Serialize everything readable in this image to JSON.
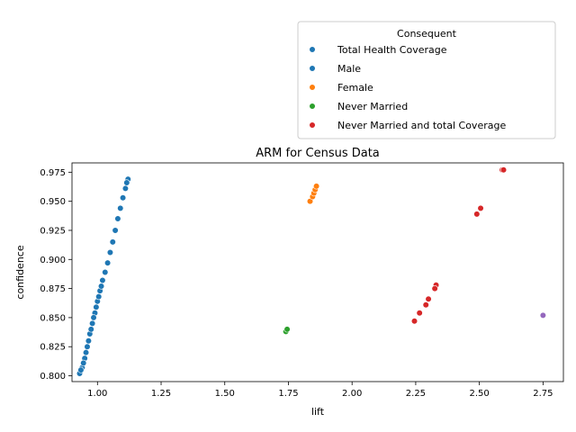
{
  "chart_data": {
    "type": "scatter",
    "title": "ARM for Census Data",
    "xlabel": "lift",
    "ylabel": "confidence",
    "xlim": [
      0.9,
      2.83
    ],
    "ylim": [
      0.795,
      0.983
    ],
    "x_ticks": [
      1.0,
      1.25,
      1.5,
      1.75,
      2.0,
      2.25,
      2.5,
      2.75
    ],
    "x_tick_labels": [
      "1.00",
      "1.25",
      "1.50",
      "1.75",
      "2.00",
      "2.25",
      "2.50",
      "2.75"
    ],
    "y_ticks": [
      0.8,
      0.825,
      0.85,
      0.875,
      0.9,
      0.925,
      0.95,
      0.975
    ],
    "y_tick_labels": [
      "0.800",
      "0.825",
      "0.850",
      "0.875",
      "0.900",
      "0.925",
      "0.950",
      "0.975"
    ],
    "grid": false,
    "legend_placement": "upper-right-outside",
    "legend_title": "Consequent",
    "series": [
      {
        "name": "Total Health Coverage",
        "color": "#1f77b4",
        "points": [
          {
            "x": 0.93,
            "y": 0.802
          },
          {
            "x": 0.94,
            "y": 0.807
          },
          {
            "x": 0.95,
            "y": 0.815
          },
          {
            "x": 0.96,
            "y": 0.825
          },
          {
            "x": 0.97,
            "y": 0.836
          },
          {
            "x": 0.98,
            "y": 0.845
          },
          {
            "x": 0.99,
            "y": 0.854
          },
          {
            "x": 1.0,
            "y": 0.864
          },
          {
            "x": 1.01,
            "y": 0.873
          },
          {
            "x": 1.02,
            "y": 0.882
          },
          {
            "x": 1.04,
            "y": 0.897
          },
          {
            "x": 1.06,
            "y": 0.915
          },
          {
            "x": 1.08,
            "y": 0.935
          },
          {
            "x": 1.1,
            "y": 0.953
          },
          {
            "x": 1.12,
            "y": 0.969
          }
        ]
      },
      {
        "name": "Male",
        "color": "#1f77b4",
        "points": [
          {
            "x": 0.935,
            "y": 0.805
          },
          {
            "x": 0.945,
            "y": 0.811
          },
          {
            "x": 0.955,
            "y": 0.82
          },
          {
            "x": 0.965,
            "y": 0.83
          },
          {
            "x": 0.975,
            "y": 0.84
          },
          {
            "x": 0.985,
            "y": 0.85
          },
          {
            "x": 0.995,
            "y": 0.859
          },
          {
            "x": 1.005,
            "y": 0.868
          },
          {
            "x": 1.015,
            "y": 0.877
          },
          {
            "x": 1.03,
            "y": 0.889
          },
          {
            "x": 1.05,
            "y": 0.906
          },
          {
            "x": 1.07,
            "y": 0.925
          },
          {
            "x": 1.09,
            "y": 0.944
          },
          {
            "x": 1.11,
            "y": 0.961
          },
          {
            "x": 1.115,
            "y": 0.966
          }
        ]
      },
      {
        "name": "Female",
        "color": "#ff7f0e",
        "points": [
          {
            "x": 1.835,
            "y": 0.95
          },
          {
            "x": 1.845,
            "y": 0.954
          },
          {
            "x": 1.85,
            "y": 0.957
          },
          {
            "x": 1.855,
            "y": 0.96
          },
          {
            "x": 1.86,
            "y": 0.963
          }
        ]
      },
      {
        "name": "Never Married",
        "color": "#2ca02c",
        "points": [
          {
            "x": 1.74,
            "y": 0.838
          },
          {
            "x": 1.745,
            "y": 0.84
          }
        ]
      },
      {
        "name": "Never Married and total Coverage",
        "color": "#d62728",
        "points": [
          {
            "x": 2.59,
            "y": 0.977
          },
          {
            "x": 2.595,
            "y": 0.977
          },
          {
            "x": 2.505,
            "y": 0.944
          },
          {
            "x": 2.49,
            "y": 0.939
          },
          {
            "x": 2.33,
            "y": 0.878
          },
          {
            "x": 2.325,
            "y": 0.875
          },
          {
            "x": 2.3,
            "y": 0.866
          },
          {
            "x": 2.29,
            "y": 0.861
          },
          {
            "x": 2.265,
            "y": 0.854
          },
          {
            "x": 2.245,
            "y": 0.847
          }
        ]
      },
      {
        "name": "",
        "color": "#9467bd",
        "points": [
          {
            "x": 2.75,
            "y": 0.852
          }
        ]
      }
    ]
  }
}
